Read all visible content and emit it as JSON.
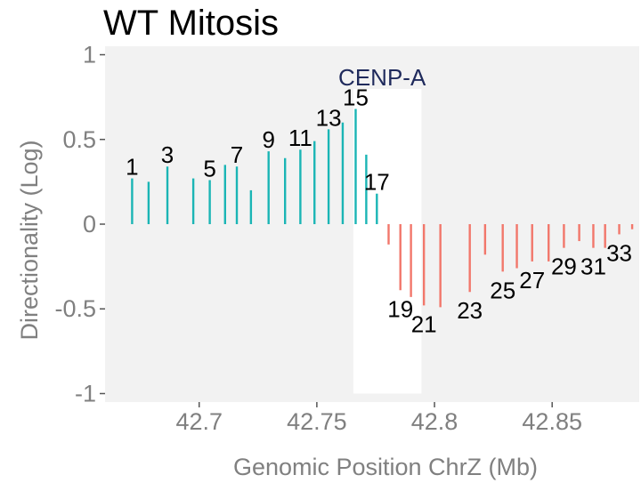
{
  "chart_data": {
    "type": "bar",
    "title": "WT Mitosis",
    "xlabel": "Genomic Position ChrZ (Mb)",
    "ylabel": "Directionality (Log)",
    "xlim": [
      42.66,
      42.887
    ],
    "ylim": [
      -1.05,
      1.05
    ],
    "xticks": [
      42.7,
      42.75,
      42.8,
      42.85
    ],
    "xtick_labels": [
      "42.7",
      "42.75",
      "42.8",
      "42.85"
    ],
    "yticks": [
      1,
      0.5,
      0,
      -0.5,
      -1
    ],
    "ytick_labels": [
      "1",
      "0.5",
      "0",
      "-0.5",
      "-1"
    ],
    "grid": false,
    "background": "#f2f2f2",
    "region": {
      "label": "CENP-A",
      "x_start": 42.7655,
      "x_end": 42.7945,
      "label_color": "#1f2a5c"
    },
    "colors": {
      "positive": "#1bb5b5",
      "negative": "#f2776b"
    },
    "x": [
      42.6715,
      42.6785,
      42.6865,
      42.6975,
      42.7045,
      42.711,
      42.716,
      42.722,
      42.7295,
      42.7365,
      42.743,
      42.749,
      42.755,
      42.761,
      42.7665,
      42.771,
      42.7755,
      42.7805,
      42.7855,
      42.79,
      42.7955,
      42.8025,
      42.815,
      42.8215,
      42.829,
      42.835,
      42.8415,
      42.8485,
      42.855,
      42.8615,
      42.8675,
      42.8725,
      42.8785,
      42.884
    ],
    "values": [
      0.27,
      0.25,
      0.34,
      0.27,
      0.26,
      0.35,
      0.34,
      0.2,
      0.43,
      0.39,
      0.44,
      0.49,
      0.56,
      0.6,
      0.68,
      0.41,
      0.18,
      -0.12,
      -0.39,
      -0.43,
      -0.48,
      -0.49,
      -0.4,
      -0.18,
      -0.28,
      -0.26,
      -0.22,
      -0.22,
      -0.14,
      -0.1,
      -0.14,
      -0.14,
      -0.06,
      -0.03
    ],
    "data_labels": [
      {
        "index": 0,
        "text": "1"
      },
      {
        "index": 2,
        "text": "3"
      },
      {
        "index": 4,
        "text": "5"
      },
      {
        "index": 6,
        "text": "7"
      },
      {
        "index": 8,
        "text": "9"
      },
      {
        "index": 10,
        "text": "11"
      },
      {
        "index": 12,
        "text": "13"
      },
      {
        "index": 14,
        "text": "15"
      },
      {
        "index": 16,
        "text": "17"
      },
      {
        "index": 18,
        "text": "19"
      },
      {
        "index": 20,
        "text": "21"
      },
      {
        "index": 22,
        "text": "23"
      },
      {
        "index": 24,
        "text": "25"
      },
      {
        "index": 26,
        "text": "27"
      },
      {
        "index": 28,
        "text": "29"
      },
      {
        "index": 30,
        "text": "31"
      },
      {
        "index": 32,
        "text": "33"
      }
    ]
  }
}
